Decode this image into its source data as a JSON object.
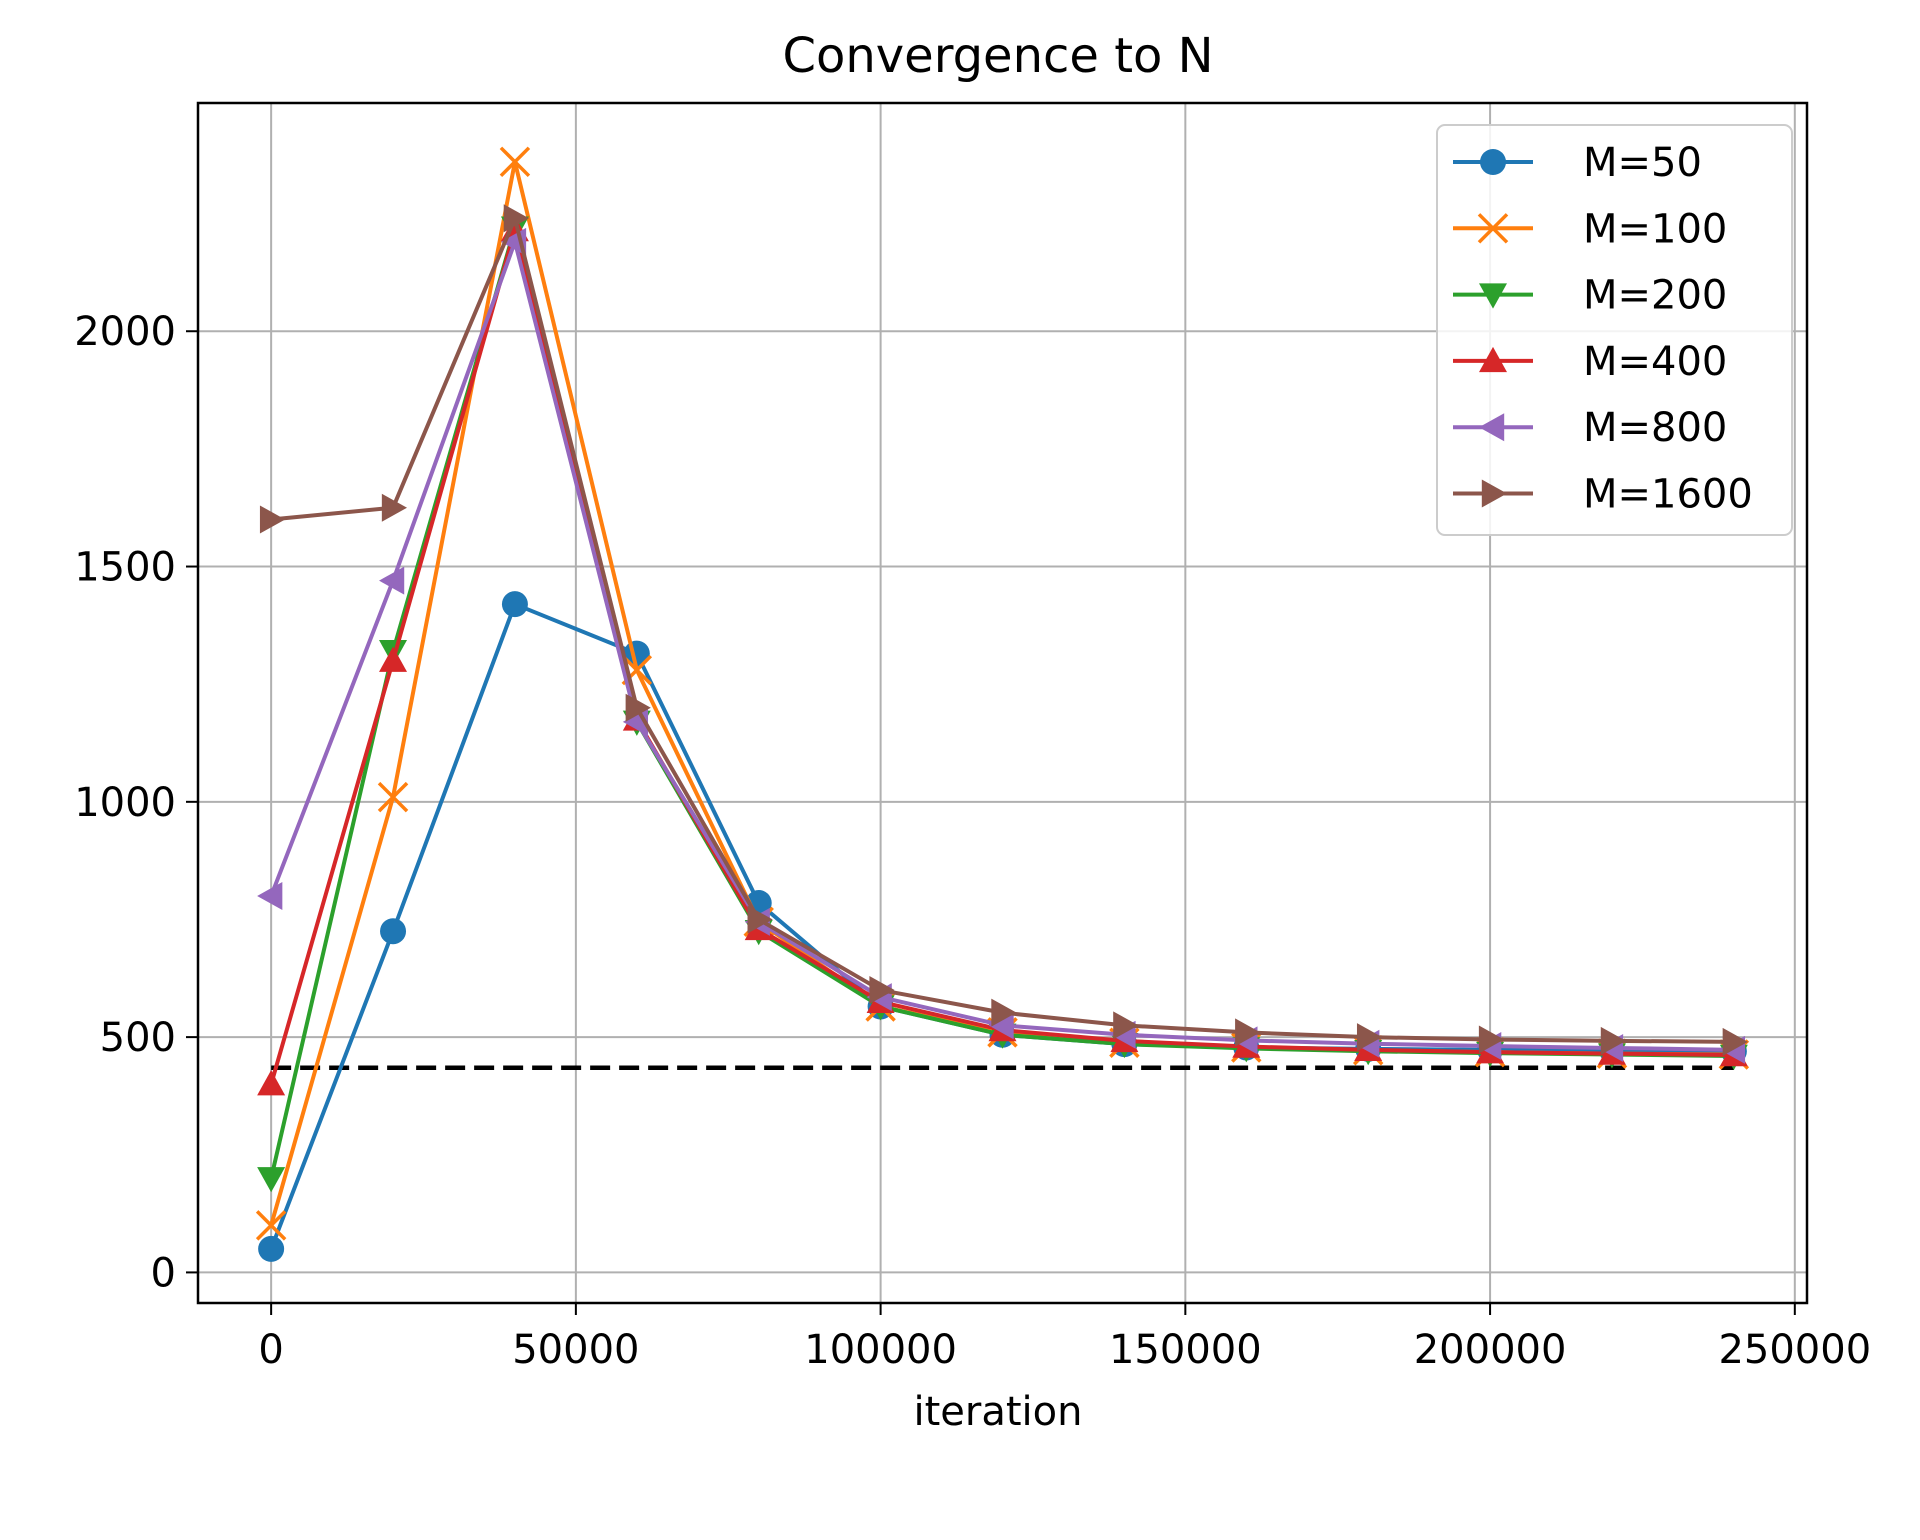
{
  "chart_data": {
    "type": "line",
    "title": "Convergence to N",
    "xlabel": "iteration",
    "ylabel": "",
    "xlim": [
      -12000,
      252000
    ],
    "ylim": [
      -65,
      2485
    ],
    "xticks": [
      0,
      50000,
      100000,
      150000,
      200000,
      250000
    ],
    "yticks": [
      0,
      500,
      1000,
      1500,
      2000
    ],
    "grid": true,
    "legend_position": "top-right",
    "x": [
      0,
      20000,
      40000,
      60000,
      80000,
      100000,
      120000,
      140000,
      160000,
      180000,
      200000,
      220000,
      240000
    ],
    "series": [
      {
        "name": "M=50",
        "color": "#1f77b4",
        "marker": "circle",
        "values": [
          50,
          725,
          1420,
          1315,
          785,
          565,
          505,
          485,
          478,
          475,
          473,
          472,
          470
        ]
      },
      {
        "name": "M=100",
        "color": "#ff7f0e",
        "marker": "x",
        "values": [
          100,
          1010,
          2360,
          1280,
          745,
          565,
          510,
          488,
          478,
          472,
          468,
          465,
          463
        ]
      },
      {
        "name": "M=200",
        "color": "#2ca02c",
        "marker": "triangle-down",
        "values": [
          200,
          1320,
          2220,
          1170,
          725,
          565,
          505,
          485,
          476,
          470,
          466,
          463,
          460
        ]
      },
      {
        "name": "M=400",
        "color": "#d62728",
        "marker": "triangle-up",
        "values": [
          400,
          1300,
          2215,
          1175,
          730,
          575,
          515,
          492,
          480,
          473,
          468,
          465,
          462
        ]
      },
      {
        "name": "M=800",
        "color": "#9467bd",
        "marker": "triangle-left",
        "values": [
          800,
          1470,
          2190,
          1170,
          745,
          585,
          525,
          505,
          493,
          486,
          481,
          477,
          473
        ]
      },
      {
        "name": "M=1600",
        "color": "#8c564b",
        "marker": "triangle-right",
        "values": [
          1600,
          1625,
          2240,
          1200,
          750,
          600,
          552,
          525,
          510,
          500,
          495,
          492,
          490
        ]
      }
    ],
    "reference_line": {
      "y": 435,
      "x_range": [
        0,
        240000
      ],
      "color": "#000000",
      "style": "dashed"
    }
  }
}
